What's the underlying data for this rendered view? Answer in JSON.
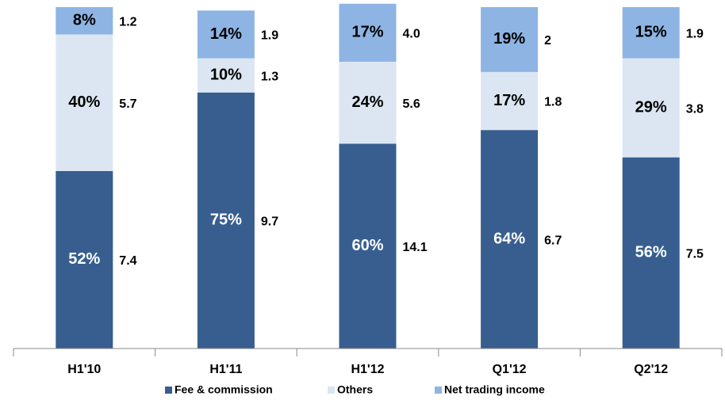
{
  "chart_data": {
    "type": "bar",
    "stacked": true,
    "categories": [
      "H1'10",
      "H1'11",
      "H1'12",
      "Q1'12",
      "Q2'12"
    ],
    "ylim": [
      0,
      100
    ],
    "series": [
      {
        "name": "Fee & commission",
        "color": "#375e8f",
        "label_color": "#ffffff",
        "values": [
          52,
          75,
          60,
          64,
          56
        ],
        "value_labels": [
          "52%",
          "75%",
          "60%",
          "64%",
          "56%"
        ],
        "amounts": [
          7.4,
          9.7,
          14.1,
          6.7,
          7.5
        ]
      },
      {
        "name": "Others",
        "color": "#dce6f2",
        "label_color": "#000000",
        "values": [
          40,
          10,
          24,
          17,
          29
        ],
        "value_labels": [
          "40%",
          "10%",
          "24%",
          "17%",
          "29%"
        ],
        "amounts": [
          5.7,
          1.3,
          5.6,
          1.8,
          3.8
        ]
      },
      {
        "name": "Net trading income",
        "color": "#8eb4e3",
        "label_color": "#000000",
        "values": [
          8,
          14,
          17,
          19,
          15
        ],
        "value_labels": [
          "8%",
          "14%",
          "17%",
          "19%",
          "15%"
        ],
        "amounts": [
          1.2,
          1.9,
          {
            "value": 4.0,
            "label": "4.0"
          },
          2.0,
          1.9
        ]
      }
    ]
  }
}
